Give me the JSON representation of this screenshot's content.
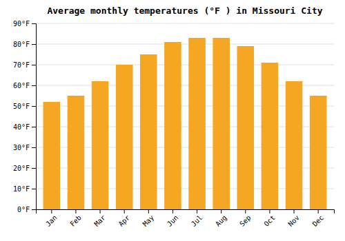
{
  "chart_data": {
    "type": "bar",
    "title": "Average monthly temperatures (°F ) in Missouri City",
    "categories": [
      "Jan",
      "Feb",
      "Mar",
      "Apr",
      "May",
      "Jun",
      "Jul",
      "Aug",
      "Sep",
      "Oct",
      "Nov",
      "Dec"
    ],
    "values": [
      52,
      55,
      62,
      70,
      75,
      81,
      83,
      83,
      79,
      71,
      62,
      55
    ],
    "color": "#F5A623",
    "ylim": [
      0,
      90
    ],
    "yticks": [
      {
        "value": 0,
        "label": "0°F"
      },
      {
        "value": 10,
        "label": "10°F"
      },
      {
        "value": 20,
        "label": "20°F"
      },
      {
        "value": 30,
        "label": "30°F"
      },
      {
        "value": 40,
        "label": "40°F"
      },
      {
        "value": 50,
        "label": "50°F"
      },
      {
        "value": 60,
        "label": "60°F"
      },
      {
        "value": 70,
        "label": "70°F"
      },
      {
        "value": 80,
        "label": "80°F"
      },
      {
        "value": 90,
        "label": "90°F"
      }
    ],
    "grid": true
  }
}
